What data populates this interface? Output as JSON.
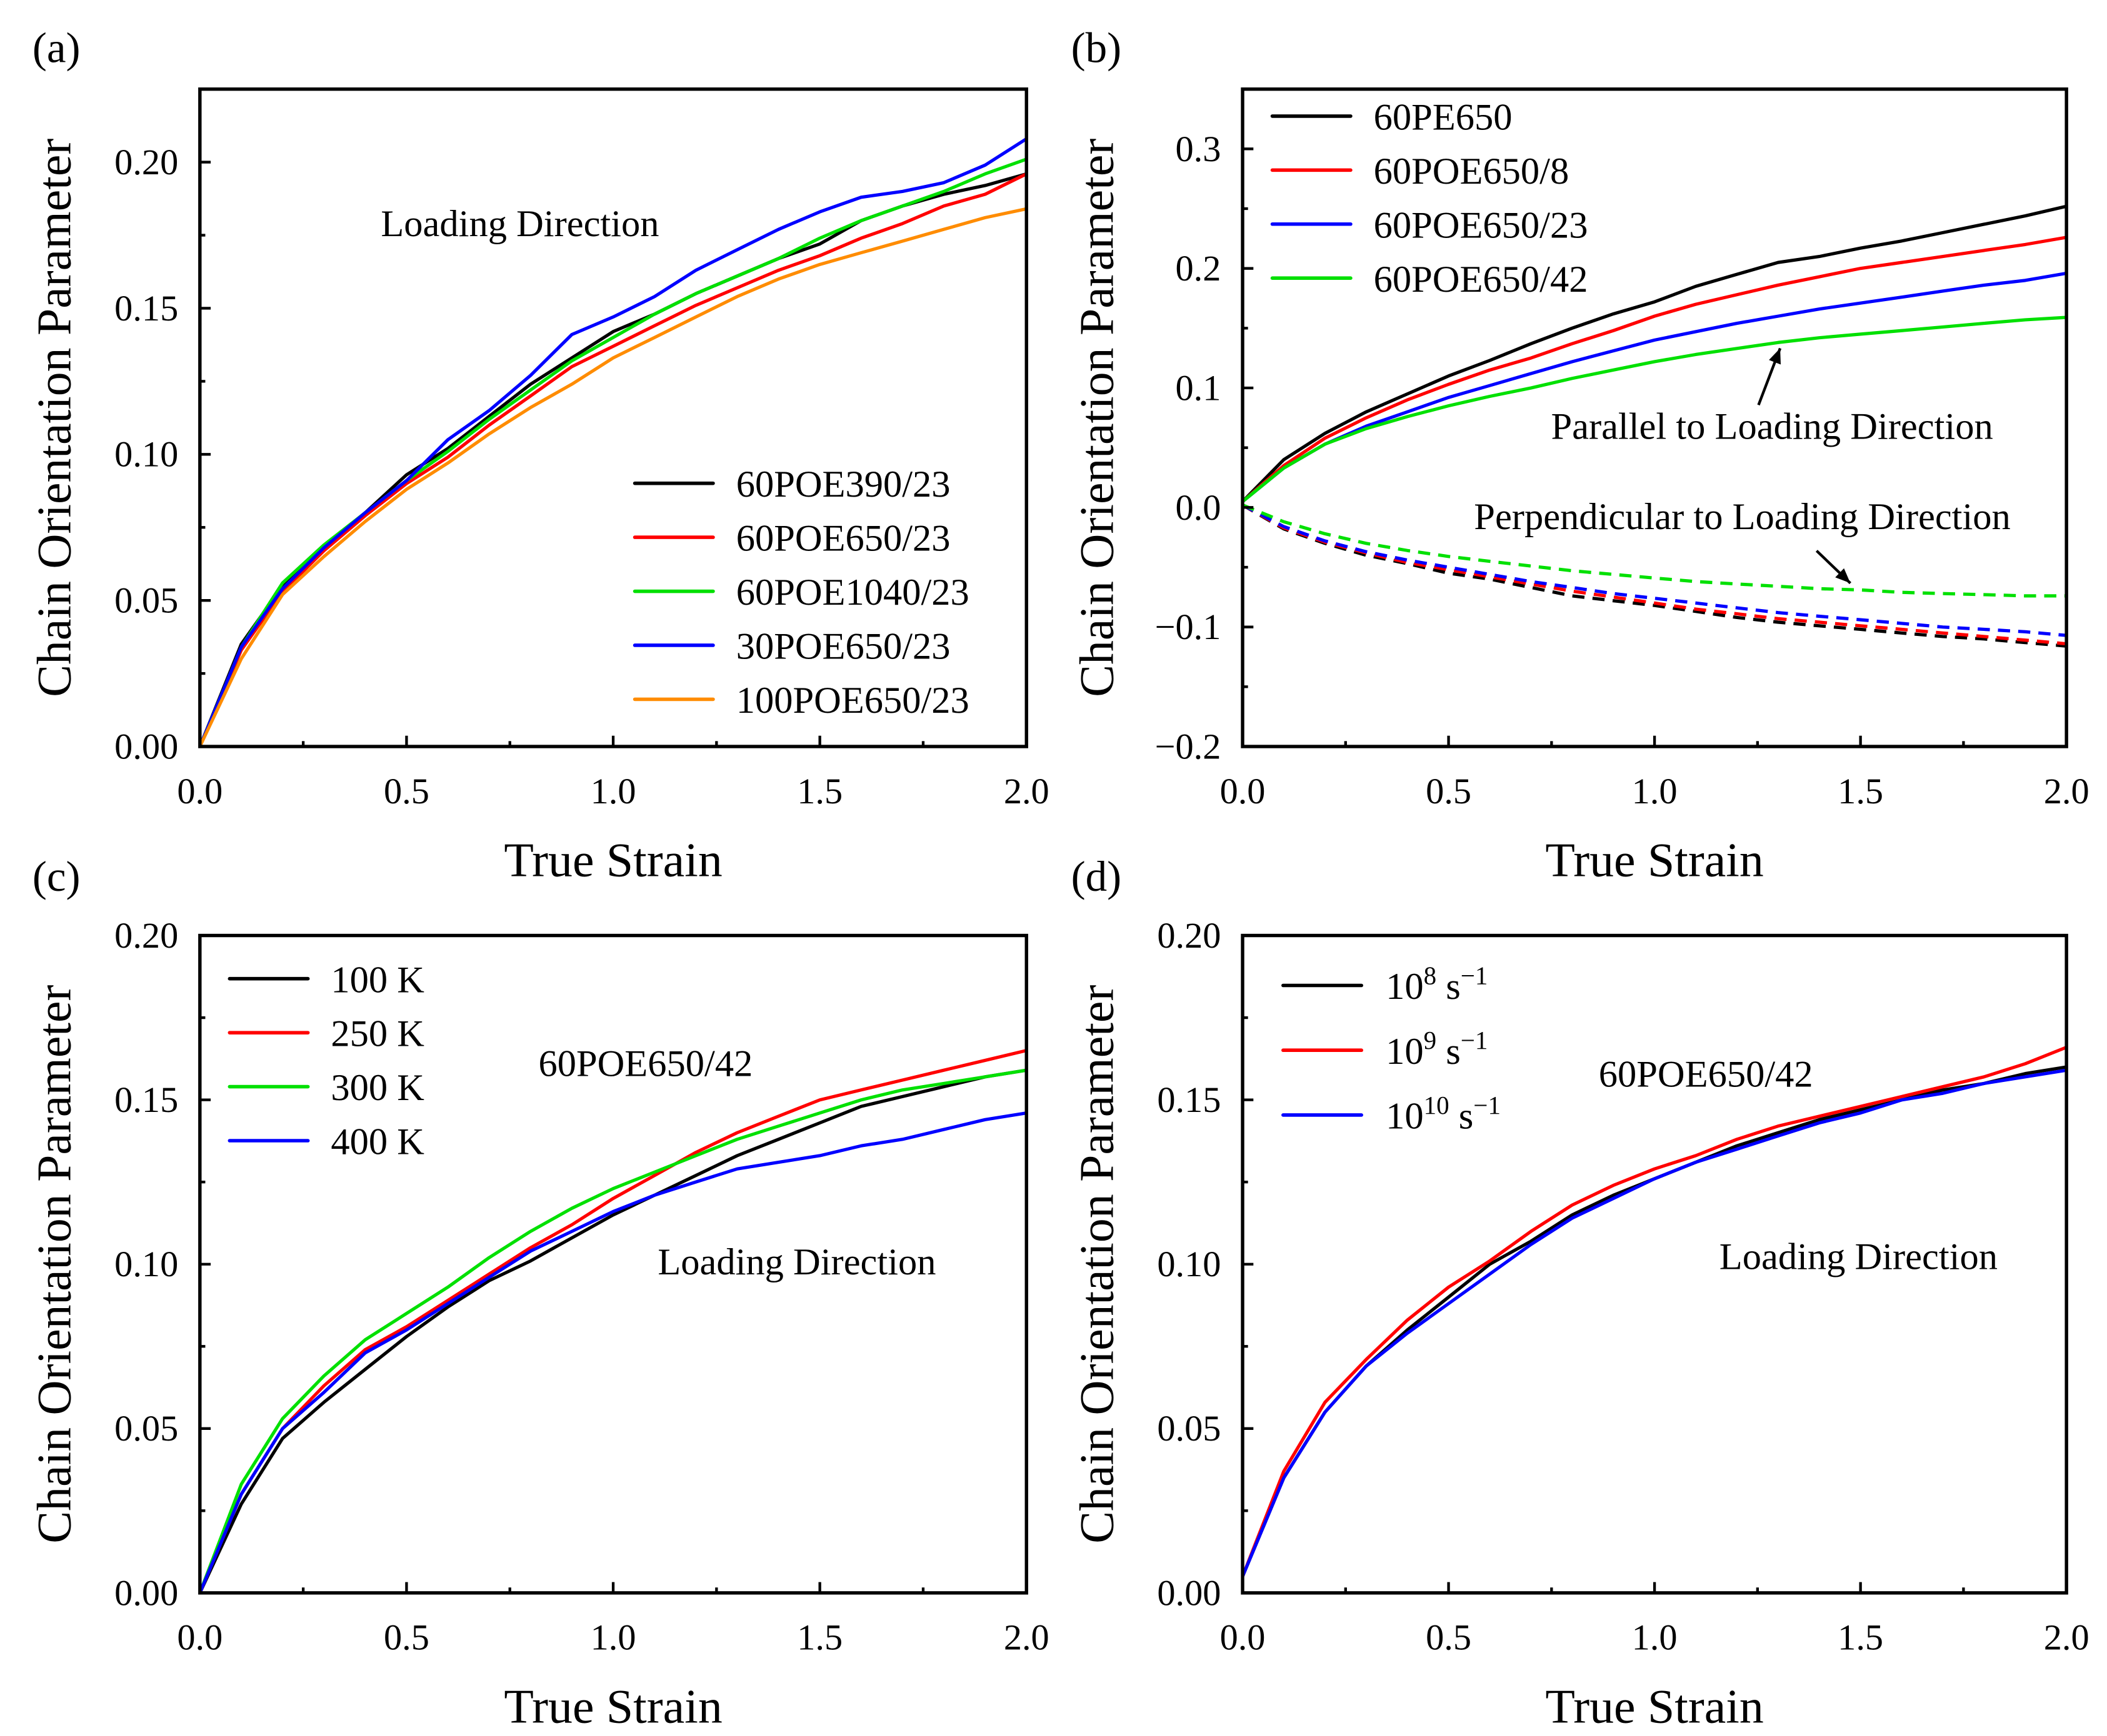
{
  "x": [
    0,
    0.1,
    0.2,
    0.3,
    0.4,
    0.5,
    0.6,
    0.7,
    0.8,
    0.9,
    1.0,
    1.1,
    1.2,
    1.3,
    1.4,
    1.5,
    1.6,
    1.7,
    1.8,
    1.9,
    2.0
  ],
  "chart_data": [
    {
      "panel_label": "(a)",
      "type": "line",
      "xlabel": "True Strain",
      "ylabel": "Chain Orientation Parameter",
      "xlim": [
        0,
        2.0
      ],
      "ylim": [
        0,
        0.225
      ],
      "xticks": [
        "0.0",
        "0.5",
        "1.0",
        "1.5",
        "2.0"
      ],
      "xtick_values": [
        0,
        0.5,
        1,
        1.5,
        2
      ],
      "yticks": [
        "0.00",
        "0.05",
        "0.10",
        "0.15",
        "0.20"
      ],
      "ytick_values": [
        0,
        0.05,
        0.1,
        0.15,
        0.2
      ],
      "annotations": [
        "Loading Direction"
      ],
      "legend_position": "bottom-right",
      "series": [
        {
          "name": "60POE390/23",
          "color": "#000000",
          "dashed": false,
          "values": [
            0,
            0.035,
            0.055,
            0.068,
            0.08,
            0.093,
            0.102,
            0.113,
            0.124,
            0.133,
            0.142,
            0.148,
            0.155,
            0.161,
            0.167,
            0.172,
            0.18,
            0.185,
            0.189,
            0.192,
            0.196
          ]
        },
        {
          "name": "60POE650/23",
          "color": "#ff0000",
          "dashed": false,
          "values": [
            0,
            0.033,
            0.053,
            0.067,
            0.079,
            0.09,
            0.099,
            0.11,
            0.12,
            0.13,
            0.137,
            0.144,
            0.151,
            0.157,
            0.163,
            0.168,
            0.174,
            0.179,
            0.185,
            0.189,
            0.196
          ]
        },
        {
          "name": "60POE1040/23",
          "color": "#00e000",
          "dashed": false,
          "values": [
            0,
            0.034,
            0.056,
            0.069,
            0.08,
            0.091,
            0.101,
            0.112,
            0.122,
            0.132,
            0.14,
            0.148,
            0.155,
            0.161,
            0.167,
            0.174,
            0.18,
            0.185,
            0.19,
            0.196,
            0.201
          ]
        },
        {
          "name": "30POE650/23",
          "color": "#0000ff",
          "dashed": false,
          "values": [
            0,
            0.034,
            0.054,
            0.068,
            0.08,
            0.091,
            0.105,
            0.115,
            0.127,
            0.141,
            0.147,
            0.154,
            0.163,
            0.17,
            0.177,
            0.183,
            0.188,
            0.19,
            0.193,
            0.199,
            0.208
          ]
        },
        {
          "name": "100POE650/23",
          "color": "#ff8c00",
          "dashed": false,
          "values": [
            0,
            0.03,
            0.052,
            0.065,
            0.077,
            0.088,
            0.097,
            0.107,
            0.116,
            0.124,
            0.133,
            0.14,
            0.147,
            0.154,
            0.16,
            0.165,
            0.169,
            0.173,
            0.177,
            0.181,
            0.184
          ]
        }
      ]
    },
    {
      "panel_label": "(b)",
      "type": "line",
      "xlabel": "True Strain",
      "ylabel": "Chain Orientation Parameter",
      "xlim": [
        0,
        2.0
      ],
      "ylim": [
        -0.2,
        0.35
      ],
      "xticks": [
        "0.0",
        "0.5",
        "1.0",
        "1.5",
        "2.0"
      ],
      "xtick_values": [
        0,
        0.5,
        1,
        1.5,
        2
      ],
      "yticks": [
        "−0.2",
        "−0.1",
        "0.0",
        "0.1",
        "0.2",
        "0.3"
      ],
      "ytick_values": [
        -0.2,
        -0.1,
        0,
        0.1,
        0.2,
        0.3
      ],
      "annotations": [
        "Parallel to Loading Direction",
        "Perpendicular to Loading Direction"
      ],
      "legend_position": "top-left",
      "series": [
        {
          "name": "60PE650",
          "color": "#000000",
          "dashed": false,
          "values": [
            0.005,
            0.04,
            0.062,
            0.08,
            0.095,
            0.11,
            0.123,
            0.137,
            0.15,
            0.162,
            0.172,
            0.185,
            0.195,
            0.205,
            0.21,
            0.217,
            0.223,
            0.23,
            0.237,
            0.244,
            0.252
          ]
        },
        {
          "name": "60POE650/8",
          "color": "#ff0000",
          "dashed": false,
          "values": [
            0.005,
            0.035,
            0.058,
            0.075,
            0.09,
            0.103,
            0.115,
            0.125,
            0.137,
            0.148,
            0.16,
            0.17,
            0.178,
            0.186,
            0.193,
            0.2,
            0.205,
            0.21,
            0.215,
            0.22,
            0.226
          ]
        },
        {
          "name": "60POE650/23",
          "color": "#0000ff",
          "dashed": false,
          "values": [
            0.005,
            0.033,
            0.053,
            0.068,
            0.08,
            0.092,
            0.102,
            0.112,
            0.122,
            0.131,
            0.14,
            0.147,
            0.154,
            0.16,
            0.166,
            0.171,
            0.176,
            0.181,
            0.186,
            0.19,
            0.196
          ]
        },
        {
          "name": "60POE650/42",
          "color": "#00e000",
          "dashed": false,
          "values": [
            0.005,
            0.033,
            0.053,
            0.066,
            0.076,
            0.085,
            0.093,
            0.1,
            0.108,
            0.115,
            0.122,
            0.128,
            0.133,
            0.138,
            0.142,
            0.145,
            0.148,
            0.151,
            0.154,
            0.157,
            0.159
          ]
        },
        {
          "name": "60PE650 (perpendicular)",
          "legend": false,
          "color": "#000000",
          "dashed": true,
          "values": [
            0.002,
            -0.018,
            -0.03,
            -0.04,
            -0.047,
            -0.055,
            -0.06,
            -0.067,
            -0.074,
            -0.078,
            -0.082,
            -0.087,
            -0.092,
            -0.096,
            -0.099,
            -0.102,
            -0.105,
            -0.108,
            -0.11,
            -0.113,
            -0.116
          ]
        },
        {
          "name": "60POE650/8 (perpendicular)",
          "legend": false,
          "color": "#ff0000",
          "dashed": true,
          "values": [
            0.002,
            -0.017,
            -0.029,
            -0.038,
            -0.046,
            -0.052,
            -0.058,
            -0.064,
            -0.07,
            -0.075,
            -0.08,
            -0.085,
            -0.089,
            -0.093,
            -0.096,
            -0.099,
            -0.102,
            -0.105,
            -0.108,
            -0.111,
            -0.114
          ]
        },
        {
          "name": "60POE650/23 (perpendicular)",
          "legend": false,
          "color": "#0000ff",
          "dashed": true,
          "values": [
            0.002,
            -0.016,
            -0.028,
            -0.037,
            -0.044,
            -0.05,
            -0.056,
            -0.062,
            -0.067,
            -0.072,
            -0.076,
            -0.08,
            -0.084,
            -0.088,
            -0.091,
            -0.094,
            -0.097,
            -0.1,
            -0.102,
            -0.104,
            -0.107
          ]
        },
        {
          "name": "60POE650/42 (perpendicular)",
          "legend": false,
          "color": "#00e000",
          "dashed": true,
          "values": [
            0.002,
            -0.012,
            -0.022,
            -0.03,
            -0.036,
            -0.041,
            -0.045,
            -0.049,
            -0.053,
            -0.056,
            -0.059,
            -0.062,
            -0.064,
            -0.066,
            -0.068,
            -0.069,
            -0.071,
            -0.072,
            -0.073,
            -0.074,
            -0.074
          ]
        }
      ]
    },
    {
      "panel_label": "(c)",
      "type": "line",
      "xlabel": "True Strain",
      "ylabel": "Chain Orientation Parameter",
      "xlim": [
        0,
        2.0
      ],
      "ylim": [
        0,
        0.2
      ],
      "xticks": [
        "0.0",
        "0.5",
        "1.0",
        "1.5",
        "2.0"
      ],
      "xtick_values": [
        0,
        0.5,
        1,
        1.5,
        2
      ],
      "yticks": [
        "0.00",
        "0.05",
        "0.10",
        "0.15",
        "0.20"
      ],
      "ytick_values": [
        0,
        0.05,
        0.1,
        0.15,
        0.2
      ],
      "annotations": [
        "60POE650/42",
        "Loading Direction"
      ],
      "legend_position": "top-left",
      "series": [
        {
          "name": "100 K",
          "color": "#000000",
          "dashed": false,
          "values": [
            0,
            0.027,
            0.047,
            0.058,
            0.068,
            0.078,
            0.087,
            0.095,
            0.101,
            0.108,
            0.115,
            0.121,
            0.127,
            0.133,
            0.138,
            0.143,
            0.148,
            0.151,
            0.154,
            0.157,
            0.159
          ]
        },
        {
          "name": "250 K",
          "color": "#ff0000",
          "dashed": false,
          "values": [
            0,
            0.03,
            0.05,
            0.063,
            0.074,
            0.081,
            0.089,
            0.097,
            0.105,
            0.112,
            0.12,
            0.127,
            0.134,
            0.14,
            0.145,
            0.15,
            0.153,
            0.156,
            0.159,
            0.162,
            0.165
          ]
        },
        {
          "name": "300 K",
          "color": "#00e000",
          "dashed": false,
          "values": [
            0,
            0.033,
            0.053,
            0.066,
            0.077,
            0.085,
            0.093,
            0.102,
            0.11,
            0.117,
            0.123,
            0.128,
            0.133,
            0.138,
            0.142,
            0.146,
            0.15,
            0.153,
            0.155,
            0.157,
            0.159
          ]
        },
        {
          "name": "400 K",
          "color": "#0000ff",
          "dashed": false,
          "values": [
            0,
            0.03,
            0.05,
            0.061,
            0.073,
            0.08,
            0.088,
            0.096,
            0.104,
            0.11,
            0.116,
            0.121,
            0.125,
            0.129,
            0.131,
            0.133,
            0.136,
            0.138,
            0.141,
            0.144,
            0.146
          ]
        }
      ]
    },
    {
      "panel_label": "(d)",
      "type": "line",
      "xlabel": "True Strain",
      "ylabel": "Chain Orientation Parameter",
      "xlim": [
        0,
        2.0
      ],
      "ylim": [
        0,
        0.2
      ],
      "xticks": [
        "0.0",
        "0.5",
        "1.0",
        "1.5",
        "2.0"
      ],
      "xtick_values": [
        0,
        0.5,
        1,
        1.5,
        2
      ],
      "yticks": [
        "0.00",
        "0.05",
        "0.10",
        "0.15",
        "0.20"
      ],
      "ytick_values": [
        0,
        0.05,
        0.1,
        0.15,
        0.2
      ],
      "annotations": [
        "60POE650/42",
        "Loading Direction"
      ],
      "legend_position": "top-left",
      "series": [
        {
          "name": "10^8 s^-1",
          "base": "10",
          "sup": "8",
          "unit": "s",
          "unit_sup": "−1",
          "color": "#000000",
          "dashed": false,
          "values": [
            0.005,
            0.035,
            0.055,
            0.069,
            0.08,
            0.09,
            0.1,
            0.107,
            0.115,
            0.121,
            0.126,
            0.131,
            0.136,
            0.14,
            0.144,
            0.147,
            0.15,
            0.153,
            0.155,
            0.158,
            0.16
          ]
        },
        {
          "name": "10^9 s^-1",
          "base": "10",
          "sup": "9",
          "unit": "s",
          "unit_sup": "−1",
          "color": "#ff0000",
          "dashed": false,
          "values": [
            0.005,
            0.037,
            0.058,
            0.071,
            0.083,
            0.093,
            0.101,
            0.11,
            0.118,
            0.124,
            0.129,
            0.133,
            0.138,
            0.142,
            0.145,
            0.148,
            0.151,
            0.154,
            0.157,
            0.161,
            0.166
          ]
        },
        {
          "name": "10^10 s^-1",
          "base": "10",
          "sup": "10",
          "unit": "s",
          "unit_sup": "−1",
          "color": "#0000ff",
          "dashed": false,
          "values": [
            0.005,
            0.035,
            0.055,
            0.069,
            0.079,
            0.088,
            0.097,
            0.106,
            0.114,
            0.12,
            0.126,
            0.131,
            0.135,
            0.139,
            0.143,
            0.146,
            0.15,
            0.152,
            0.155,
            0.157,
            0.159
          ]
        }
      ]
    }
  ]
}
